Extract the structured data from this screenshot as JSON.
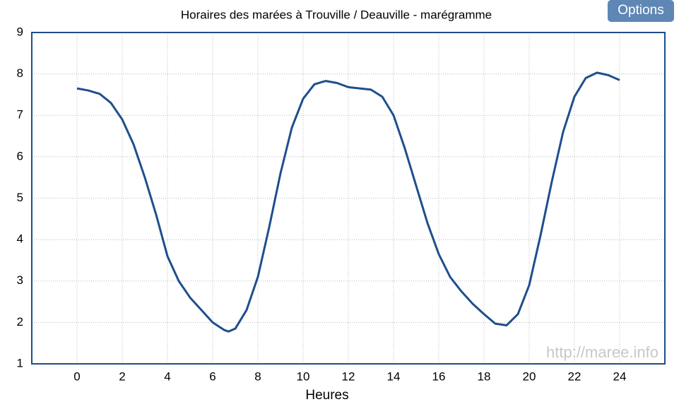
{
  "chart_data": {
    "type": "line",
    "title": "Horaires des marées à Trouville / Deauville - marégramme",
    "x_label": "Heures",
    "x": [
      0,
      0.5,
      1,
      1.5,
      2,
      2.5,
      3,
      3.5,
      4,
      4.5,
      5,
      5.5,
      6,
      6.5,
      6.7,
      7,
      7.5,
      8,
      8.5,
      9,
      9.5,
      10,
      10.5,
      11,
      11.5,
      12,
      12.5,
      13,
      13.5,
      14,
      14.5,
      15,
      15.5,
      16,
      16.5,
      17,
      17.5,
      18,
      18.5,
      19,
      19.5,
      20,
      20.5,
      21,
      21.5,
      22,
      22.5,
      23,
      23.5,
      24
    ],
    "series": [
      {
        "color": "#1f4e8c",
        "values": [
          7.65,
          7.6,
          7.52,
          7.3,
          6.9,
          6.3,
          5.5,
          4.6,
          3.6,
          3.0,
          2.6,
          2.3,
          2.0,
          1.82,
          1.78,
          1.85,
          2.3,
          3.1,
          4.3,
          5.6,
          6.7,
          7.4,
          7.75,
          7.83,
          7.78,
          7.68,
          7.65,
          7.62,
          7.45,
          7.0,
          6.2,
          5.3,
          4.4,
          3.65,
          3.1,
          2.75,
          2.45,
          2.2,
          1.97,
          1.93,
          2.2,
          2.9,
          4.1,
          5.4,
          6.6,
          7.45,
          7.9,
          8.03,
          7.97,
          7.85
        ]
      }
    ],
    "xlim": [
      -2,
      26
    ],
    "xticks": [
      0,
      2,
      4,
      6,
      8,
      10,
      12,
      14,
      16,
      18,
      20,
      22,
      24
    ],
    "ylim": [
      1,
      9
    ],
    "yticks": [
      1,
      2,
      3,
      4,
      5,
      6,
      7,
      8,
      9
    ],
    "grid": true
  },
  "watermark": "http://maree.info",
  "options_button": "Options"
}
